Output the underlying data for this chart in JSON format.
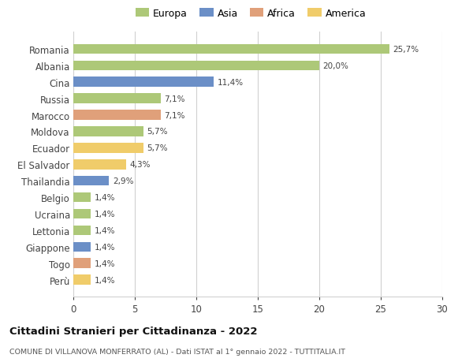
{
  "countries": [
    "Romania",
    "Albania",
    "Cina",
    "Russia",
    "Marocco",
    "Moldova",
    "Ecuador",
    "El Salvador",
    "Thailandia",
    "Belgio",
    "Ucraina",
    "Lettonia",
    "Giappone",
    "Togo",
    "Perù"
  ],
  "values": [
    25.7,
    20.0,
    11.4,
    7.1,
    7.1,
    5.7,
    5.7,
    4.3,
    2.9,
    1.4,
    1.4,
    1.4,
    1.4,
    1.4,
    1.4
  ],
  "labels": [
    "25,7%",
    "20,0%",
    "11,4%",
    "7,1%",
    "7,1%",
    "5,7%",
    "5,7%",
    "4,3%",
    "2,9%",
    "1,4%",
    "1,4%",
    "1,4%",
    "1,4%",
    "1,4%",
    "1,4%"
  ],
  "colors": [
    "#adc878",
    "#adc878",
    "#6b8fc7",
    "#adc878",
    "#e0a07a",
    "#adc878",
    "#f0cc6a",
    "#f0cc6a",
    "#6b8fc7",
    "#adc878",
    "#adc878",
    "#adc878",
    "#6b8fc7",
    "#e0a07a",
    "#f0cc6a"
  ],
  "legend_labels": [
    "Europa",
    "Asia",
    "Africa",
    "America"
  ],
  "legend_colors": [
    "#adc878",
    "#6b8fc7",
    "#e0a07a",
    "#f0cc6a"
  ],
  "title": "Cittadini Stranieri per Cittadinanza - 2022",
  "subtitle": "COMUNE DI VILLANOVA MONFERRATO (AL) - Dati ISTAT al 1° gennaio 2022 - TUTTITALIA.IT",
  "xlim": [
    0,
    30
  ],
  "xticks": [
    0,
    5,
    10,
    15,
    20,
    25,
    30
  ],
  "background_color": "#ffffff",
  "grid_color": "#d0d0d0"
}
